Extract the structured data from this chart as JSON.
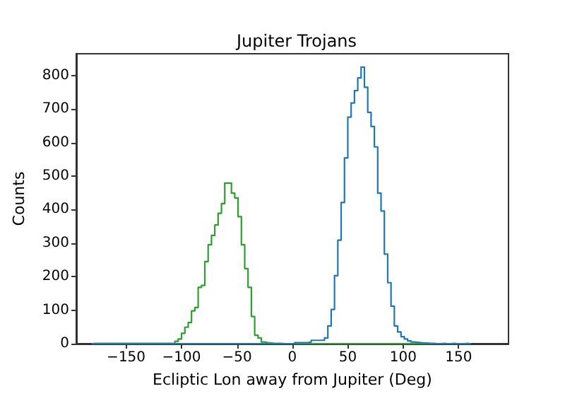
{
  "chart_data": {
    "type": "histogram",
    "title": "Jupiter Trojans",
    "xlabel": "Ecliptic Lon away from Jupiter (Deg)",
    "ylabel": "Counts",
    "bins": [
      -181,
      -178,
      -175,
      -172,
      -169,
      -166,
      -163,
      -160,
      -157,
      -154,
      -151,
      -148,
      -145,
      -142,
      -139,
      -136,
      -133,
      -130,
      -127,
      -124,
      -121,
      -118,
      -115,
      -112,
      -109,
      -106,
      -103,
      -100,
      -97,
      -94,
      -91,
      -88,
      -85,
      -82,
      -79,
      -76,
      -73,
      -70,
      -67,
      -64,
      -61,
      -58,
      -55,
      -52,
      -49,
      -46,
      -43,
      -40,
      -37,
      -34,
      -31,
      -28,
      -25,
      -22,
      -19,
      -16,
      -13,
      -10,
      -7,
      -4,
      -1,
      2,
      5,
      8,
      11,
      14,
      17,
      20,
      23,
      26,
      29,
      32,
      35,
      38,
      41,
      44,
      47,
      50,
      53,
      56,
      59,
      62,
      65,
      68,
      71,
      74,
      77,
      80,
      83,
      86,
      89,
      92,
      95,
      98,
      101,
      104,
      107,
      110,
      113,
      116,
      119,
      122,
      125,
      128,
      131,
      134,
      137,
      140,
      143,
      146,
      149,
      152,
      155,
      158,
      161
    ],
    "series": [
      {
        "color": "#2ca02c",
        "values": [
          1,
          1,
          1,
          1,
          1,
          1,
          1,
          1,
          1,
          1,
          1,
          1,
          1,
          1,
          1,
          1,
          1,
          1,
          1,
          1,
          1,
          1,
          1,
          1,
          1,
          7,
          14,
          31,
          49,
          63,
          98,
          108,
          168,
          174,
          245,
          295,
          323,
          354,
          389,
          418,
          479,
          479,
          449,
          435,
          379,
          295,
          224,
          168,
          81,
          25,
          17,
          5,
          3,
          2,
          1,
          1,
          1,
          0,
          0,
          0,
          0,
          0,
          0,
          0,
          0,
          0,
          0,
          0,
          0,
          0,
          0,
          0,
          0,
          0,
          0,
          0,
          0,
          0,
          0,
          0,
          0,
          0,
          0,
          0,
          0,
          0,
          0,
          0,
          0,
          0,
          0,
          0,
          0,
          0,
          0,
          0,
          0,
          0,
          0,
          0,
          0,
          0,
          0,
          0,
          0,
          0,
          0,
          0,
          0,
          0,
          0,
          0,
          0,
          0
        ]
      },
      {
        "color": "#1f77b4",
        "values": [
          0,
          0,
          0,
          0,
          0,
          0,
          0,
          0,
          0,
          0,
          0,
          0,
          0,
          0,
          0,
          0,
          0,
          0,
          0,
          0,
          0,
          0,
          0,
          0,
          0,
          0,
          0,
          0,
          0,
          0,
          0,
          0,
          0,
          0,
          0,
          0,
          0,
          0,
          0,
          0,
          0,
          0,
          0,
          0,
          0,
          0,
          0,
          0,
          0,
          0,
          0,
          0,
          0,
          0,
          0,
          0,
          0,
          0,
          0,
          0,
          0,
          3,
          3,
          3,
          3,
          5,
          10,
          10,
          10,
          10,
          17,
          53,
          102,
          203,
          309,
          421,
          554,
          676,
          718,
          755,
          793,
          825,
          765,
          690,
          648,
          587,
          449,
          396,
          267,
          182,
          112,
          53,
          35,
          21,
          14,
          8,
          5,
          4,
          3,
          2,
          2,
          1,
          1,
          0,
          0,
          1,
          0,
          0,
          1,
          0,
          0,
          0,
          1,
          0
        ]
      }
    ],
    "xlim": [
      -195,
      195
    ],
    "xticks": [
      -150,
      -100,
      -50,
      0,
      50,
      100,
      150
    ],
    "ylim": [
      0,
      865
    ],
    "yticks": [
      0,
      100,
      200,
      300,
      400,
      500,
      600,
      700,
      800
    ],
    "grid": false,
    "legend": false
  }
}
